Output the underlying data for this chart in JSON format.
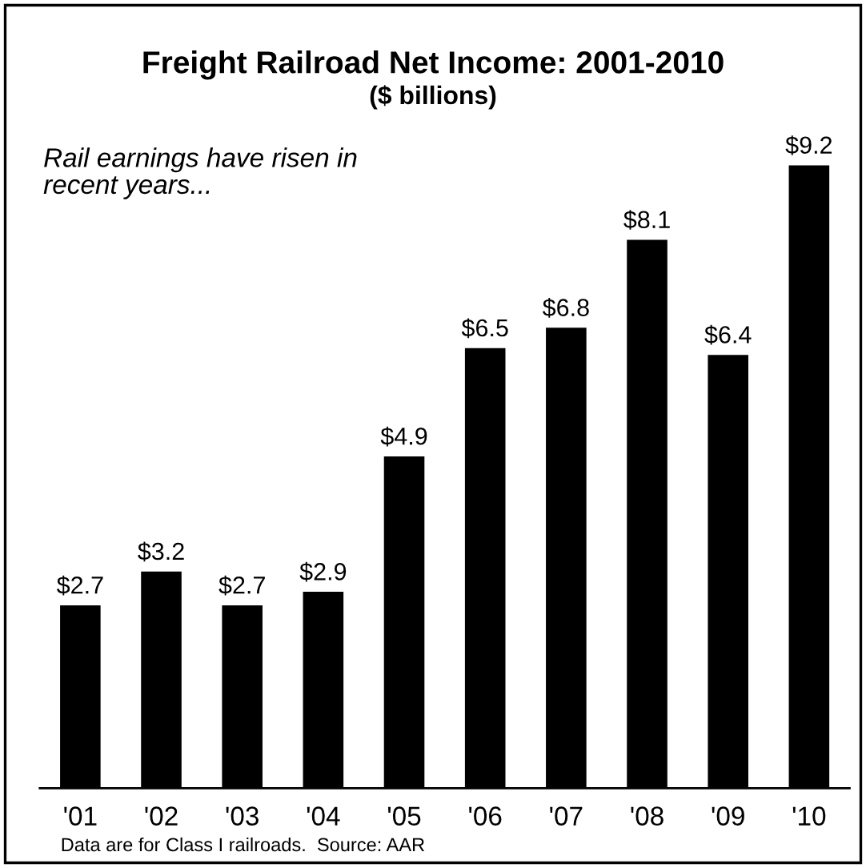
{
  "chart_data": {
    "type": "bar",
    "title": "Freight Railroad Net Income: 2001-2010",
    "subtitle": "($ billions)",
    "categories": [
      "'01",
      "'02",
      "'03",
      "'04",
      "'05",
      "'06",
      "'07",
      "'08",
      "'09",
      "'10"
    ],
    "values": [
      2.7,
      3.2,
      2.7,
      2.9,
      4.9,
      6.5,
      6.8,
      8.1,
      6.4,
      9.2
    ],
    "value_labels": [
      "$2.7",
      "$3.2",
      "$2.7",
      "$2.9",
      "$4.9",
      "$6.5",
      "$6.8",
      "$8.1",
      "$6.4",
      "$9.2"
    ],
    "color": "#000000",
    "annotations": [
      "Rail earnings have risen in\nrecent years...",
      "Data are for Class I railroads.  Source: AAR"
    ],
    "grid": false,
    "legend": false
  }
}
